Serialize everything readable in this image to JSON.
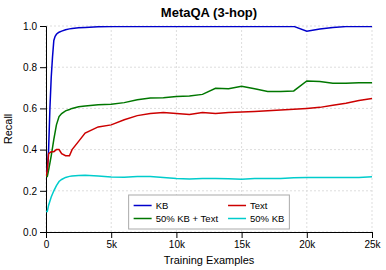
{
  "chart_data": {
    "type": "line",
    "title": "MetaQA (3-hop)",
    "xlabel": "Training Examples",
    "ylabel": "Recall",
    "xlim": [
      0,
      25000
    ],
    "ylim": [
      0.0,
      1.0
    ],
    "xticks": [
      0,
      {
        "value": 5000,
        "label": "5k"
      },
      {
        "value": 10000,
        "label": "10k"
      },
      {
        "value": 15000,
        "label": "15k"
      },
      {
        "value": 20000,
        "label": "20k"
      },
      {
        "value": 25000,
        "label": "25k"
      }
    ],
    "yticks": [
      {
        "value": 0.0,
        "label": "0.0"
      },
      0.2,
      0.4,
      0.6,
      0.8,
      {
        "value": 1.0,
        "label": "1.0"
      }
    ],
    "grid": true,
    "legend": "lower center",
    "series": [
      {
        "name": "KB",
        "color": "#0000cc",
        "x": [
          0,
          100,
          200,
          300,
          400,
          500,
          600,
          700,
          800,
          900,
          1000,
          1200,
          1500,
          1800,
          2000,
          2500,
          3000,
          4000,
          5000,
          6000,
          7000,
          8000,
          9000,
          10000,
          11000,
          12000,
          13000,
          14000,
          15000,
          16000,
          17000,
          18000,
          19000,
          20000,
          21000,
          22000,
          23000,
          24000,
          25000
        ],
        "values": [
          0.27,
          0.3,
          0.4,
          0.6,
          0.75,
          0.85,
          0.93,
          0.95,
          0.96,
          0.965,
          0.97,
          0.975,
          0.982,
          0.986,
          0.988,
          0.991,
          0.993,
          0.996,
          0.997,
          0.998,
          0.998,
          0.998,
          0.998,
          0.998,
          0.998,
          0.998,
          0.998,
          0.998,
          0.998,
          0.998,
          0.998,
          0.998,
          0.998,
          0.975,
          0.985,
          0.993,
          0.997,
          0.998,
          0.998
        ]
      },
      {
        "name": "50% KB + Text",
        "color": "#007700",
        "x": [
          0,
          100,
          200,
          400,
          600,
          800,
          1000,
          1200,
          1500,
          1800,
          2000,
          2500,
          3000,
          4000,
          5000,
          6000,
          7000,
          8000,
          9000,
          10000,
          11000,
          12000,
          13000,
          14000,
          15000,
          16000,
          17000,
          18000,
          19000,
          20000,
          21000,
          22000,
          23000,
          24000,
          25000
        ],
        "values": [
          0.27,
          0.27,
          0.3,
          0.37,
          0.45,
          0.52,
          0.56,
          0.575,
          0.588,
          0.595,
          0.6,
          0.608,
          0.612,
          0.618,
          0.62,
          0.628,
          0.642,
          0.65,
          0.652,
          0.658,
          0.66,
          0.668,
          0.698,
          0.695,
          0.708,
          0.695,
          0.682,
          0.682,
          0.685,
          0.733,
          0.73,
          0.722,
          0.722,
          0.724,
          0.725
        ]
      },
      {
        "name": "Text",
        "color": "#cc0000",
        "x": [
          0,
          100,
          200,
          400,
          600,
          800,
          1000,
          1200,
          1500,
          1800,
          2000,
          2500,
          3000,
          4000,
          5000,
          6000,
          7000,
          8000,
          9000,
          10000,
          11000,
          12000,
          13000,
          14000,
          15000,
          16000,
          17000,
          18000,
          19000,
          20000,
          21000,
          22000,
          23000,
          24000,
          25000
        ],
        "values": [
          0.27,
          0.3,
          0.38,
          0.39,
          0.39,
          0.4,
          0.4,
          0.38,
          0.37,
          0.37,
          0.4,
          0.44,
          0.48,
          0.51,
          0.52,
          0.545,
          0.565,
          0.575,
          0.58,
          0.575,
          0.57,
          0.58,
          0.575,
          0.58,
          0.582,
          0.585,
          0.588,
          0.592,
          0.596,
          0.6,
          0.605,
          0.615,
          0.625,
          0.638,
          0.648
        ]
      },
      {
        "name": "50% KB",
        "color": "#00cccc",
        "x": [
          0,
          100,
          200,
          400,
          600,
          800,
          1000,
          1200,
          1500,
          1800,
          2000,
          2500,
          3000,
          4000,
          5000,
          6000,
          7000,
          8000,
          9000,
          10000,
          11000,
          12000,
          13000,
          14000,
          15000,
          16000,
          17000,
          18000,
          19000,
          20000,
          21000,
          22000,
          23000,
          24000,
          25000
        ],
        "values": [
          0.1,
          0.1,
          0.13,
          0.17,
          0.2,
          0.225,
          0.245,
          0.255,
          0.265,
          0.27,
          0.272,
          0.274,
          0.275,
          0.272,
          0.267,
          0.266,
          0.269,
          0.269,
          0.265,
          0.26,
          0.257,
          0.26,
          0.26,
          0.258,
          0.256,
          0.26,
          0.26,
          0.26,
          0.263,
          0.264,
          0.265,
          0.265,
          0.265,
          0.265,
          0.268
        ]
      }
    ]
  }
}
